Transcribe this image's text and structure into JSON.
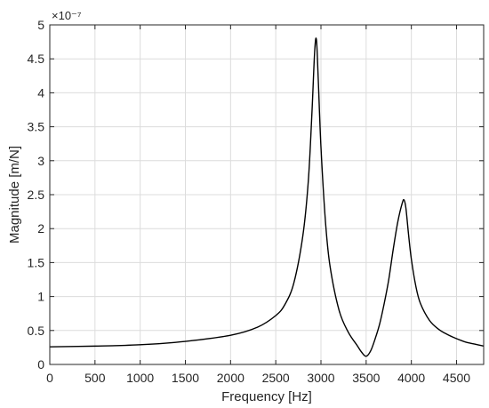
{
  "chart_data": {
    "type": "line",
    "title": "",
    "xlabel": "Frequency [Hz]",
    "ylabel": "Magnitude [m/N]",
    "y_exponent_label": "×10⁻⁷",
    "xlim": [
      0,
      4800
    ],
    "ylim": [
      0,
      5
    ],
    "x_ticks": [
      0,
      500,
      1000,
      1500,
      2000,
      2500,
      3000,
      3500,
      4000,
      4500
    ],
    "y_ticks": [
      0,
      0.5,
      1,
      1.5,
      2,
      2.5,
      3,
      3.5,
      4,
      4.5,
      5
    ],
    "x_tick_labels": [
      "0",
      "500",
      "1000",
      "1500",
      "2000",
      "2500",
      "3000",
      "3500",
      "4000",
      "4500"
    ],
    "y_tick_labels": [
      "0",
      "0.5",
      "1",
      "1.5",
      "2",
      "2.5",
      "3",
      "3.5",
      "4",
      "4.5",
      "5"
    ],
    "grid": true,
    "line_color": "#000000",
    "grid_color": "#dcdcdc",
    "series": [
      {
        "x": [
          0,
          500,
          1000,
          1500,
          2000,
          2300,
          2500,
          2600,
          2700,
          2800,
          2860,
          2900,
          2930,
          2950,
          2970,
          3000,
          3050,
          3100,
          3200,
          3300,
          3400,
          3450,
          3500,
          3550,
          3600,
          3650,
          3700,
          3750,
          3800,
          3850,
          3900,
          3920,
          3940,
          3970,
          4000,
          4050,
          4100,
          4200,
          4300,
          4400,
          4500,
          4600,
          4700,
          4800
        ],
        "y": [
          0.26,
          0.27,
          0.29,
          0.34,
          0.43,
          0.55,
          0.72,
          0.88,
          1.2,
          1.9,
          2.7,
          3.7,
          4.6,
          4.78,
          4.2,
          3.2,
          2.1,
          1.45,
          0.8,
          0.48,
          0.28,
          0.18,
          0.12,
          0.2,
          0.38,
          0.6,
          0.9,
          1.25,
          1.7,
          2.1,
          2.38,
          2.42,
          2.3,
          1.9,
          1.55,
          1.15,
          0.9,
          0.65,
          0.52,
          0.44,
          0.38,
          0.33,
          0.3,
          0.27
        ]
      }
    ]
  }
}
